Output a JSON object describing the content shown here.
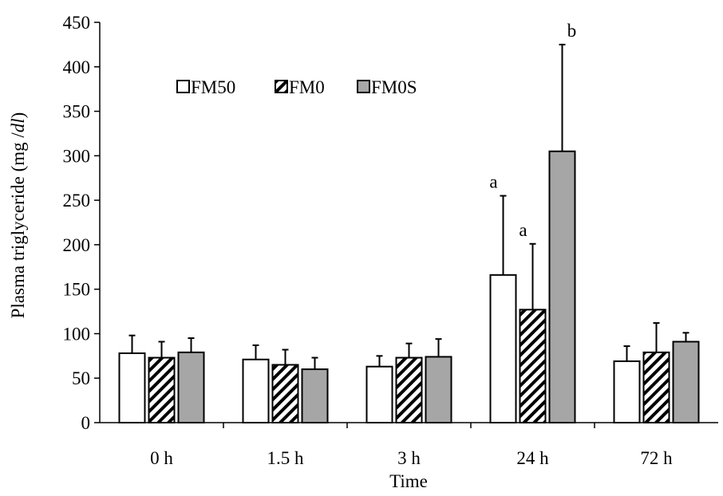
{
  "chart_data": {
    "type": "bar",
    "title": "",
    "xlabel": "Time",
    "ylabel_main": "Plasma triglyceride (mg /",
    "ylabel_unit": "dl",
    "ylabel_close": ")",
    "ylim": [
      0,
      450
    ],
    "ytick_step": 50,
    "yticks": [
      "0",
      "50",
      "100",
      "150",
      "200",
      "250",
      "300",
      "350",
      "400",
      "450"
    ],
    "categories": [
      "0 h",
      "1.5 h",
      "3 h",
      "24 h",
      "72 h"
    ],
    "legend_position": "top-left",
    "series": [
      {
        "name": "FM50",
        "fill": "white",
        "values": [
          78,
          71,
          63,
          166,
          69
        ],
        "errors": [
          20,
          16,
          12,
          89,
          17
        ],
        "labels": [
          "",
          "",
          "",
          "a",
          ""
        ]
      },
      {
        "name": "FM0",
        "fill": "hatch",
        "values": [
          73,
          65,
          73,
          127,
          79
        ],
        "errors": [
          18,
          17,
          16,
          74,
          33
        ],
        "labels": [
          "",
          "",
          "",
          "a",
          ""
        ]
      },
      {
        "name": "FM0S",
        "fill": "#a6a6a6",
        "values": [
          79,
          60,
          74,
          305,
          91
        ],
        "errors": [
          16,
          13,
          20,
          120,
          10
        ],
        "labels": [
          "",
          "",
          "",
          "b",
          ""
        ]
      }
    ]
  }
}
